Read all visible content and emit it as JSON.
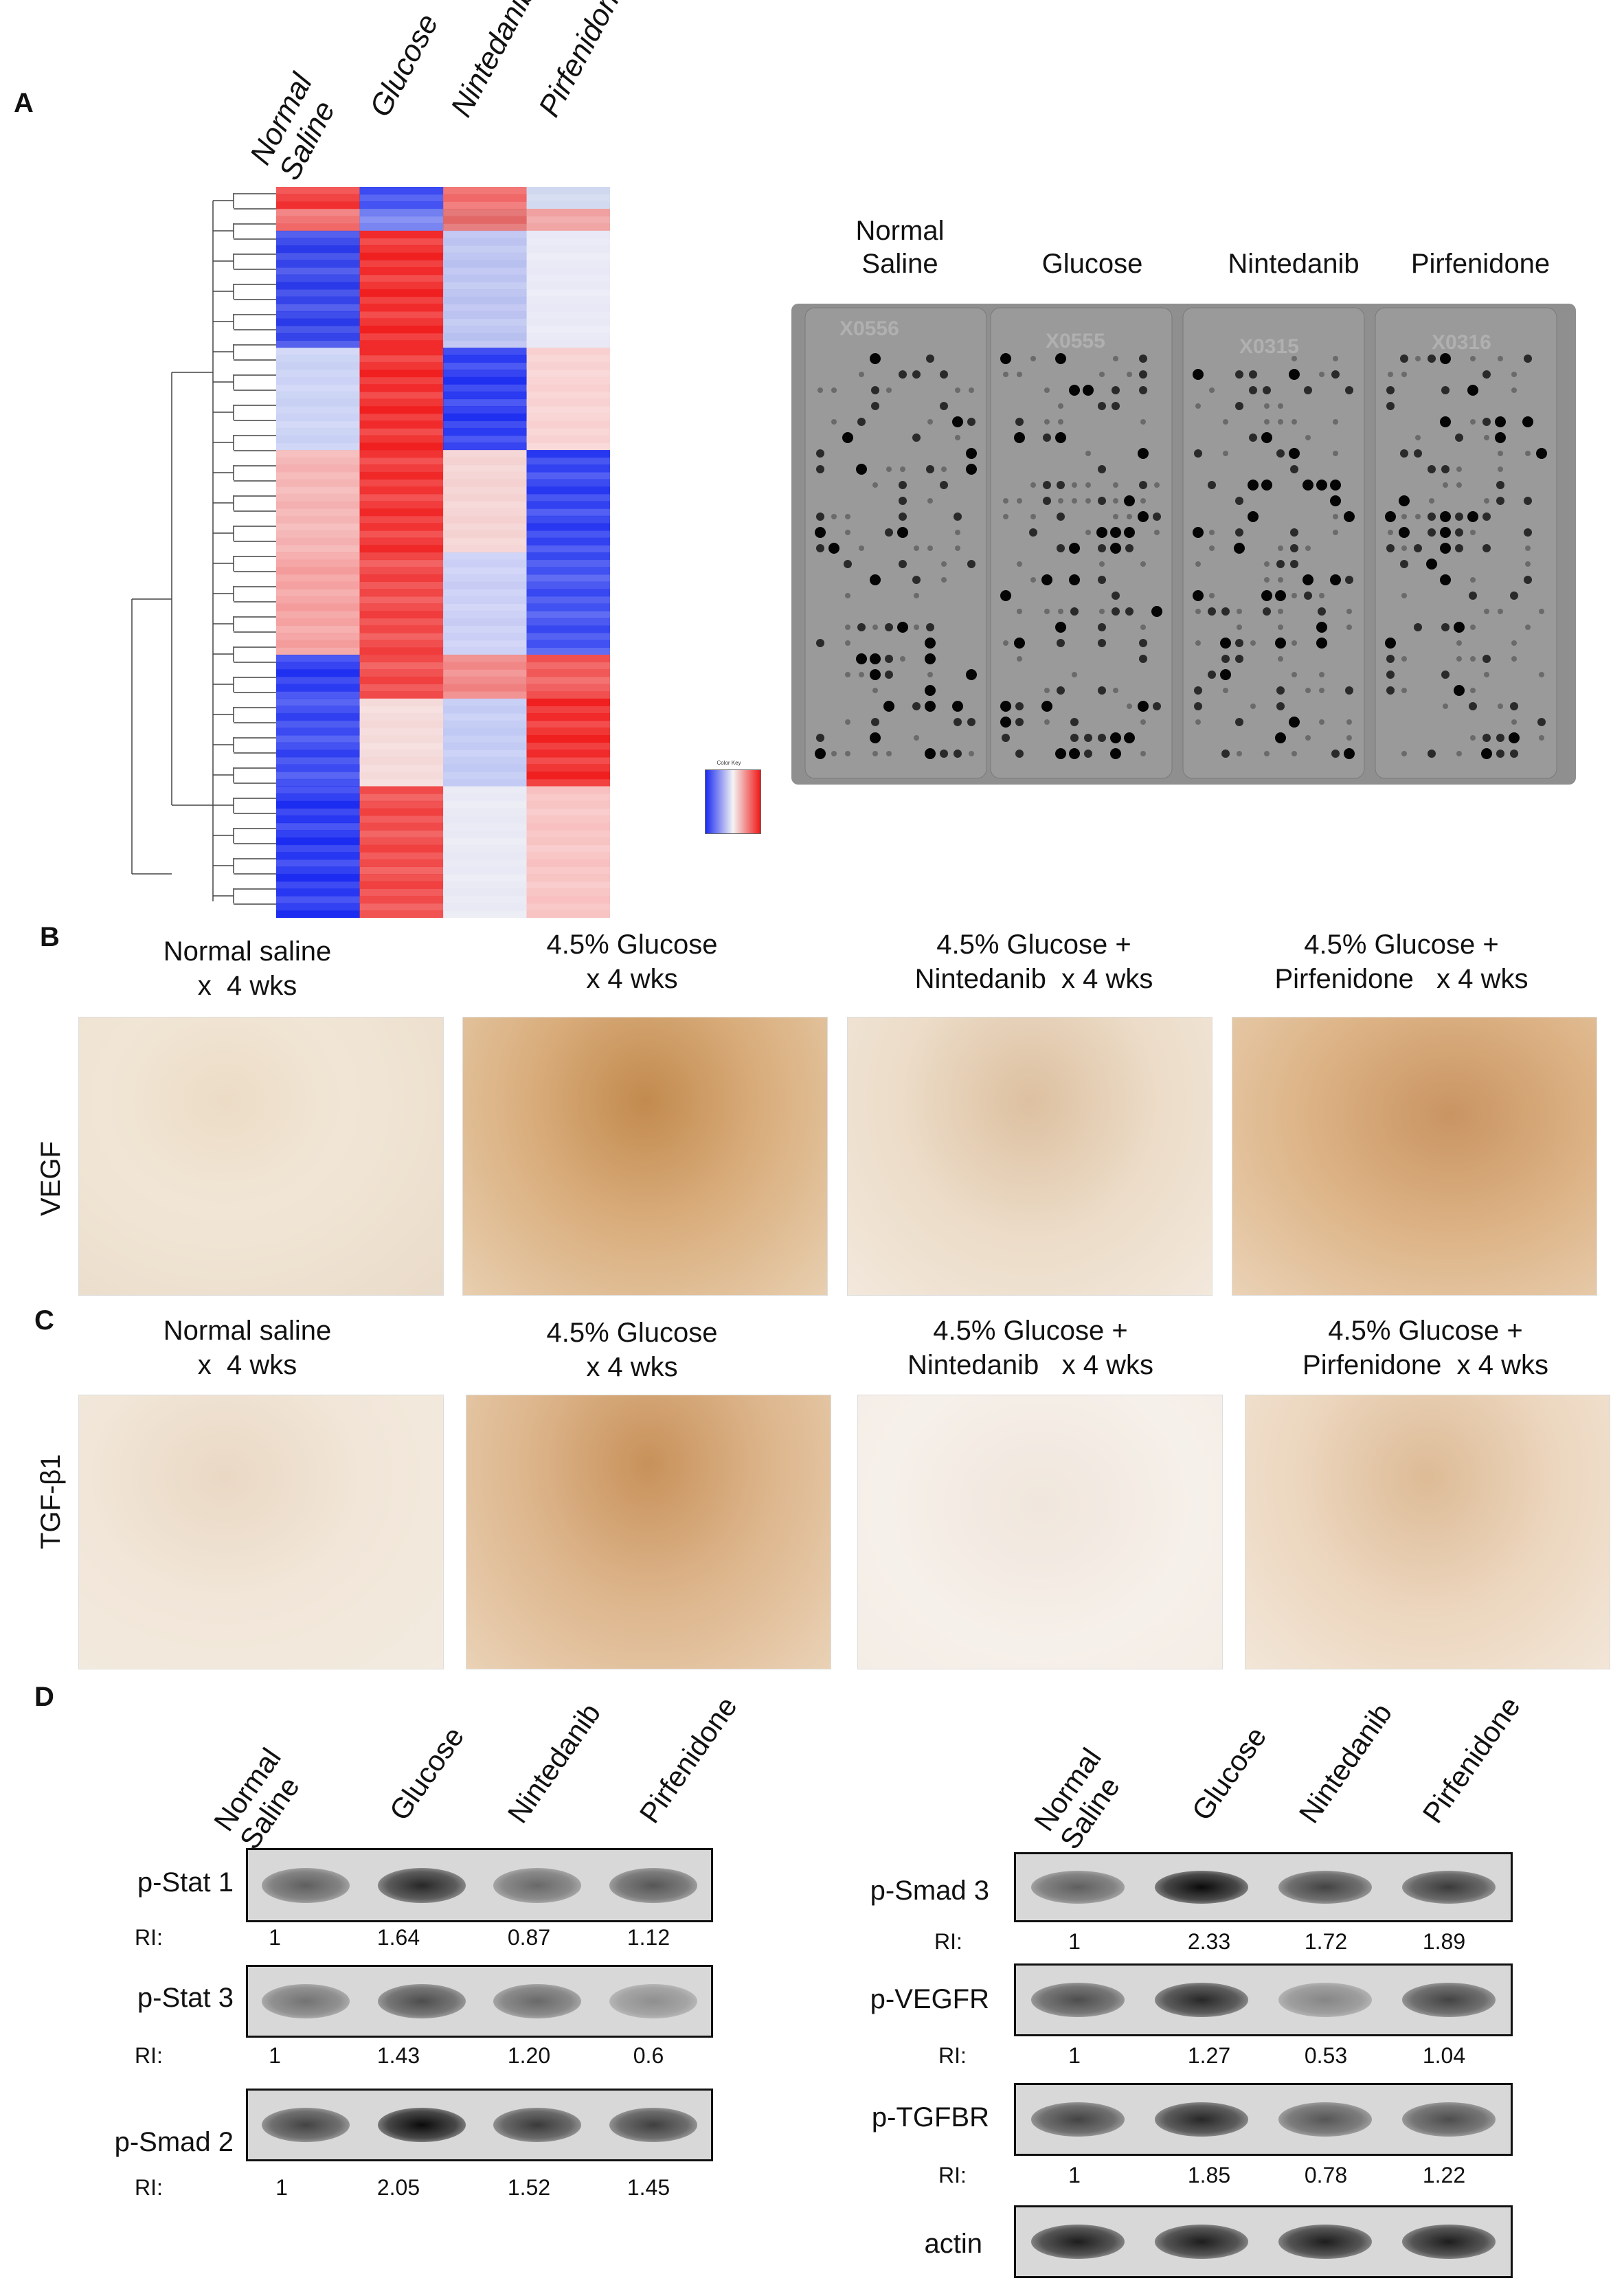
{
  "panels": {
    "A": "A",
    "B": "B",
    "C": "C",
    "D": "D"
  },
  "panelA": {
    "heatmap_columns": [
      "Normal\nSaline",
      "Glucose",
      "Nintedanib",
      "Pirfenidone"
    ],
    "heatmap_colors": {
      "low": "#1b2bf0",
      "mid": "#f4f4f4",
      "high": "#f01818"
    },
    "color_key_title": "Color Key",
    "array_columns": [
      "Normal\nSaline",
      "Glucose",
      "Nintedanib",
      "Pirfenidone"
    ],
    "array_ids": [
      "X0556",
      "X0555",
      "X0315",
      "X0316"
    ]
  },
  "panelB": {
    "conditions": [
      "Normal saline\nx  4 wks",
      "4.5% Glucose\nx 4 wks",
      "4.5% Glucose +\nNintedanib  x 4 wks",
      "4.5% Glucose +\nPirfenidone   x 4 wks"
    ],
    "stain": "VEGF"
  },
  "panelC": {
    "conditions": [
      "Normal saline\nx  4 wks",
      "4.5% Glucose\nx 4 wks",
      "4.5% Glucose +\nNintedanib   x 4 wks",
      "4.5% Glucose +\nPirfenidone  x 4 wks"
    ],
    "stain": "TGF-β1"
  },
  "panelD": {
    "lane_labels": [
      "Normal\nSaline",
      "Glucose",
      "Nintedanib",
      "Pirfenidone"
    ],
    "ri_label": "RI:",
    "left_blots": [
      {
        "name": "p-Stat 1",
        "ri": [
          "1",
          "1.64",
          "0.87",
          "1.12"
        ]
      },
      {
        "name": "p-Stat 3",
        "ri": [
          "1",
          "1.43",
          "1.20",
          "0.6"
        ]
      },
      {
        "name": "p-Smad 2",
        "ri": [
          "1",
          "2.05",
          "1.52",
          "1.45"
        ]
      }
    ],
    "right_blots": [
      {
        "name": "p-Smad 3",
        "ri": [
          "1",
          "2.33",
          "1.72",
          "1.89"
        ]
      },
      {
        "name": "p-VEGFR",
        "ri": [
          "1",
          "1.27",
          "0.53",
          "1.04"
        ]
      },
      {
        "name": "p-TGFBR",
        "ri": [
          "1",
          "1.85",
          "0.78",
          "1.22"
        ]
      },
      {
        "name": "actin",
        "ri": []
      }
    ]
  }
}
